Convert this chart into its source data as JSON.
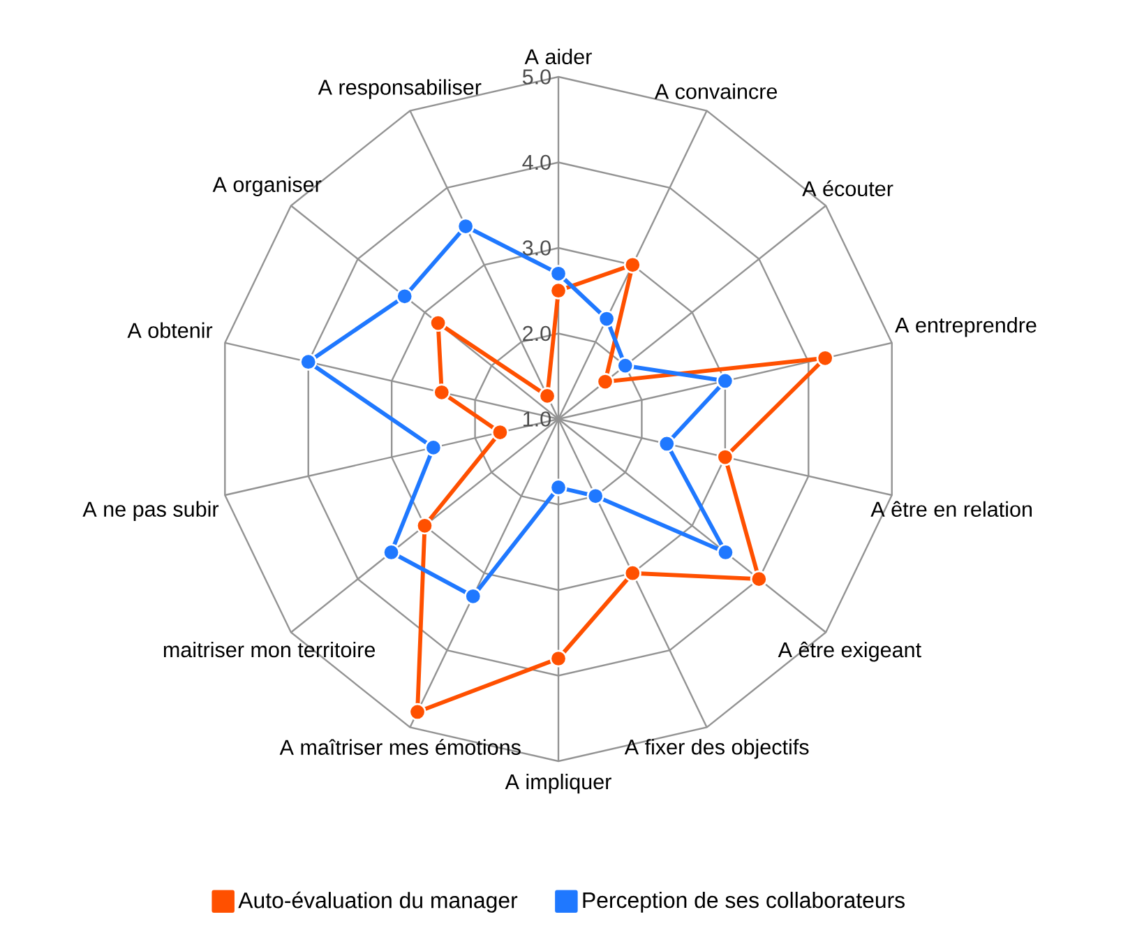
{
  "chart_data": {
    "type": "radar",
    "categories": [
      "A aider",
      "A convaincre",
      "A écouter",
      "A entreprendre",
      "A être en relation",
      "A être exigeant",
      "A fixer des objectifs",
      "A impliquer",
      "A maîtriser mes émotions",
      "maitriser mon territoire",
      "A ne pas subir",
      "A obtenir",
      "A organiser",
      "A responsabiliser"
    ],
    "series": [
      {
        "name": "Auto-évaluation du manager",
        "color": "#ff5000",
        "values": [
          2.5,
          3.0,
          1.7,
          4.2,
          3.0,
          4.0,
          3.0,
          3.8,
          4.8,
          3.0,
          1.7,
          2.4,
          2.8,
          1.3
        ]
      },
      {
        "name": "Perception de ses collaborateurs",
        "color": "#1f78ff",
        "values": [
          2.7,
          2.3,
          2.0,
          3.0,
          2.3,
          3.5,
          2.0,
          1.8,
          3.3,
          3.5,
          2.5,
          4.0,
          3.3,
          3.5
        ]
      }
    ],
    "ylim": [
      1,
      5
    ],
    "yticks": [
      {
        "value": 1,
        "label": "1.0"
      },
      {
        "value": 2,
        "label": "2.0"
      },
      {
        "value": 3,
        "label": "3.0"
      },
      {
        "value": 4,
        "label": "4.0"
      },
      {
        "value": 5,
        "label": "5.0"
      }
    ],
    "grid": true,
    "marker": "circle",
    "legend": "bottom"
  }
}
